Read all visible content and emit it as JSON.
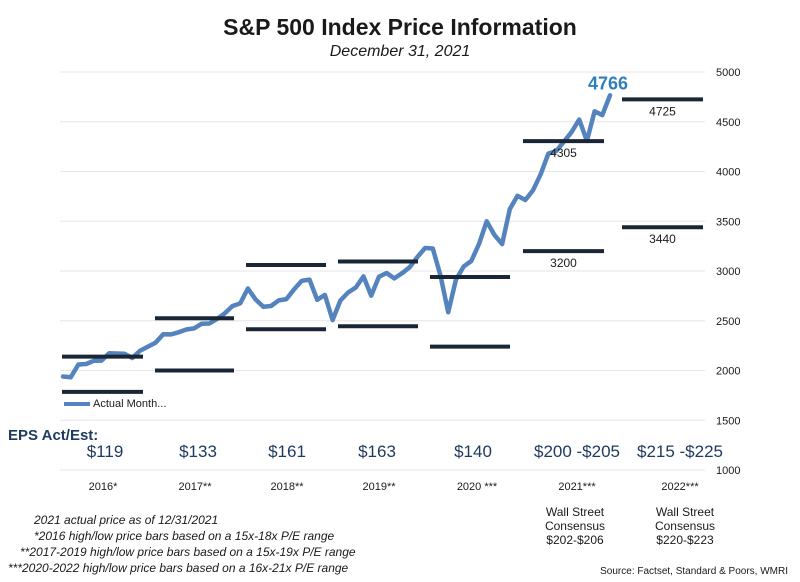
{
  "chart_data": {
    "type": "line",
    "title": "S&P 500 Index Price Information",
    "subtitle": "December 31, 2021",
    "ylim": [
      1000,
      5000
    ],
    "yticks": [
      1000,
      1500,
      2000,
      2500,
      3000,
      3500,
      4000,
      4500,
      5000
    ],
    "series": [
      {
        "name": "Actual Month...",
        "color": "#5583bd",
        "values": [
          1940,
          1932,
          2060,
          2065,
          2097,
          2099,
          2174,
          2171,
          2168,
          2126,
          2199,
          2239,
          2279,
          2364,
          2363,
          2384,
          2412,
          2423,
          2470,
          2472,
          2519,
          2575,
          2648,
          2674,
          2824,
          2714,
          2641,
          2648,
          2705,
          2718,
          2816,
          2902,
          2914,
          2711,
          2760,
          2507,
          2704,
          2784,
          2834,
          2946,
          2752,
          2942,
          2980,
          2926,
          2977,
          3038,
          3141,
          3231,
          3226,
          2954,
          2585,
          2912,
          3044,
          3100,
          3271,
          3500,
          3363,
          3270,
          3622,
          3756,
          3714,
          3811,
          3973,
          4181,
          4204,
          4298,
          4395,
          4523,
          4308,
          4605,
          4567,
          4766
        ]
      }
    ],
    "latest_label": "4766",
    "bars": [
      {
        "year": "2016",
        "high": 2140,
        "low": 1785
      },
      {
        "year": "2017",
        "high": 2525,
        "low": 2000
      },
      {
        "year": "2018",
        "high": 3060,
        "low": 2415
      },
      {
        "year": "2019",
        "high": 3095,
        "low": 2445
      },
      {
        "year": "2020",
        "high": 2940,
        "low": 2240
      },
      {
        "year": "2021",
        "high": 4305,
        "low": 3200,
        "high_label": "4305",
        "low_label": "3200"
      },
      {
        "year": "2022",
        "high": 4725,
        "low": 3440,
        "high_label": "4725",
        "low_label": "3440"
      }
    ],
    "colors": {
      "line": "#5583bd",
      "bars": "#1a2635",
      "latest": "#2f7fbe",
      "grid": "#e6e6e6"
    }
  },
  "eps_title": "EPS Act/Est:",
  "eps": [
    "$119",
    "$133",
    "$161",
    "$163",
    "$140",
    "$200 -$205",
    "$215 -$225"
  ],
  "years": [
    "2016*",
    "2017**",
    "2018**",
    "2019**",
    "2020 ***",
    "2021***",
    "2022***"
  ],
  "ws_2021": [
    "Wall Street",
    "Consensus",
    "$202-$206"
  ],
  "ws_2022": [
    "Wall Street",
    "Consensus",
    "$220-$223"
  ],
  "notes": [
    "2021 actual price as of 12/31/2021",
    "*2016 high/low price bars based on a 15x-18x P/E range",
    "**2017-2019 high/low price bars based on a 15x-19x P/E range",
    "***2020-2022 high/low price bars based on a 16x-21x P/E range"
  ],
  "source": "Source: Factset, Standard & Poors, WMRI"
}
